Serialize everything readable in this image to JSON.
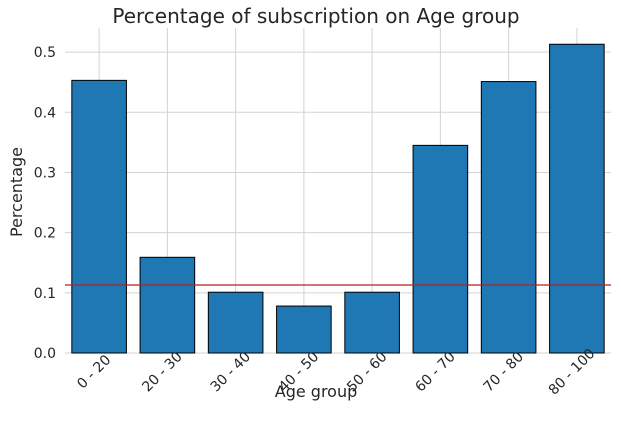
{
  "chart_data": {
    "type": "bar",
    "title": "Percentage of subscription on Age group",
    "xlabel": "Age group",
    "ylabel": "Percentage",
    "categories": [
      "0 - 20",
      "20 - 30",
      "30 - 40",
      "40 - 50",
      "50 - 60",
      "60 - 70",
      "70 - 80",
      "80 - 100"
    ],
    "values": [
      0.453,
      0.159,
      0.101,
      0.078,
      0.101,
      0.345,
      0.451,
      0.513
    ],
    "ylim": [
      0,
      0.54
    ],
    "yticks": [
      0.0,
      0.1,
      0.2,
      0.3,
      0.4,
      0.5
    ],
    "ytick_labels": [
      "0.0",
      "0.1",
      "0.2",
      "0.3",
      "0.4",
      "0.5"
    ],
    "reference_line": 0.113,
    "grid": true,
    "colors": {
      "bar": "#1f77b4",
      "bar_edge": "#000000",
      "reference_line": "#b22222",
      "grid": "#d3d3d3"
    }
  }
}
